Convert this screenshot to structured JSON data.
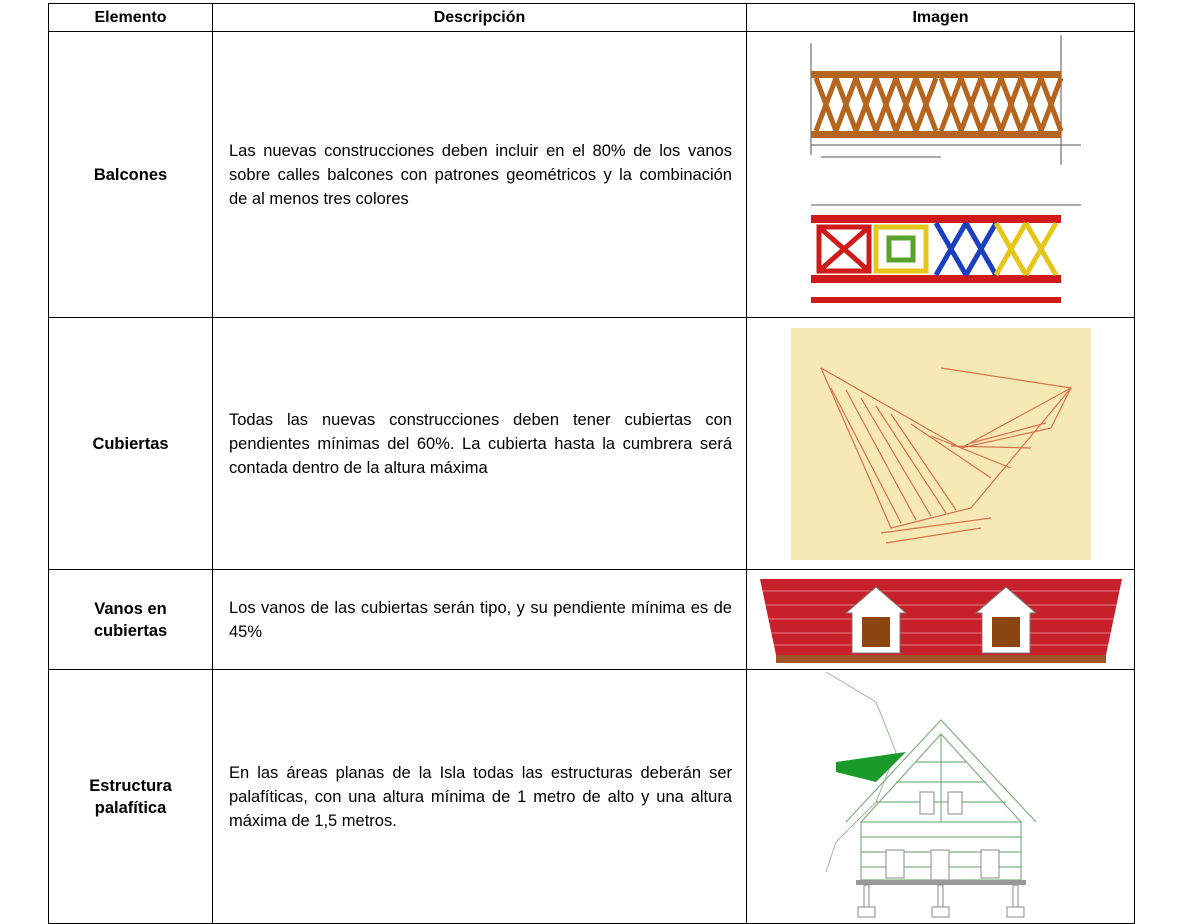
{
  "table": {
    "header": [
      "Elemento",
      "Descripción",
      "Imagen"
    ],
    "rows": [
      {
        "element": "Balcones",
        "description": "Las nuevas construcciones deben incluir en el 80% de los vanos sobre calles balcones con patrones geométricos y la combinación de al menos tres colores"
      },
      {
        "element": "Cubiertas",
        "description": "Todas las nuevas construcciones deben tener cubiertas con pendientes mínimas del 60%. La cubierta hasta la cumbrera será contada dentro de la altura máxima"
      },
      {
        "element": "Vanos en cubiertas",
        "description": "Los vanos de las cubiertas serán tipo, y su pendiente mínima es de 45%"
      },
      {
        "element": "Estructura palafítica",
        "description": "En las áreas planas de la Isla todas las estructuras deberán ser palafíticas, con una altura mínima de 1 metro de alto y una altura máxima de 1,5 metros."
      }
    ]
  }
}
